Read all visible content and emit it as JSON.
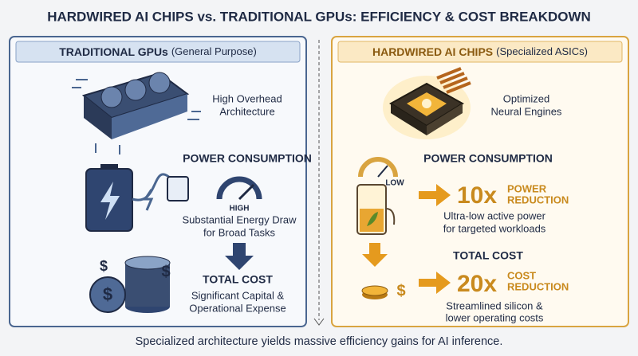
{
  "title": "HARDWIRED AI CHIPS vs. TRADITIONAL GPUs: EFFICIENCY & COST BREAKDOWN",
  "left": {
    "header": {
      "name": "TRADITIONAL GPUs",
      "note": "(General Purpose)"
    },
    "feature": [
      "High Overhead",
      "Architecture"
    ],
    "power": {
      "title": "POWER CONSUMPTION",
      "gauge_label": "HIGH",
      "desc": [
        "Substantial Energy Draw",
        "for Broad Tasks"
      ]
    },
    "cost": {
      "title": "TOTAL COST",
      "desc": [
        "Significant Capital &",
        "Operational Expense"
      ]
    }
  },
  "right": {
    "header": {
      "name": "HARDWIRED AI CHIPS",
      "note": "(Specialized ASICs)"
    },
    "feature": [
      "Optimized",
      "Neural Engines"
    ],
    "power": {
      "title": "POWER CONSUMPTION",
      "gauge_label": "LOW",
      "factor": "10x",
      "factor_label": [
        "POWER",
        "REDUCTION"
      ],
      "desc": [
        "Ultra-low active power",
        "for targeted workloads"
      ]
    },
    "cost": {
      "title": "TOTAL COST",
      "factor": "20x",
      "factor_label": [
        "COST",
        "REDUCTION"
      ],
      "desc": [
        "Streamlined silicon &",
        "lower operating costs"
      ]
    }
  },
  "footer": "Specialized architecture yields massive efficiency gains for AI inference."
}
